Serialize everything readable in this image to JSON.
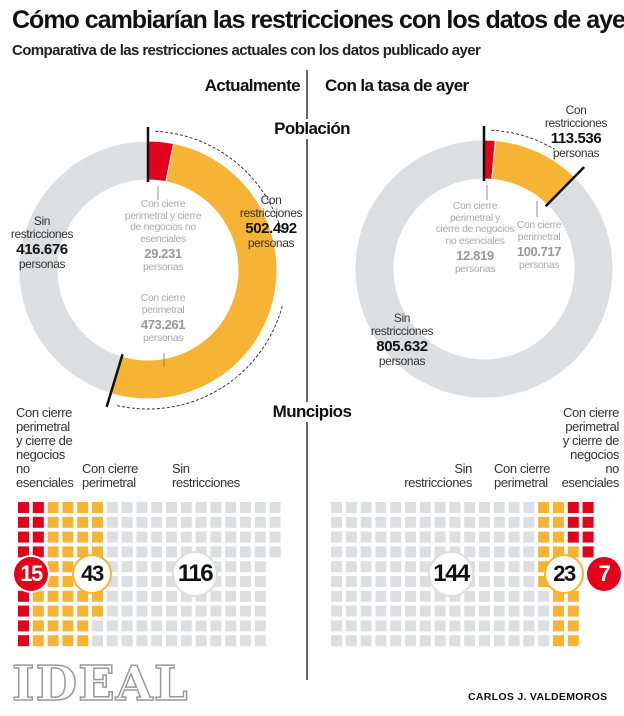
{
  "title": "Cómo cambiarían las restricciones con los datos de ayer",
  "subtitle": "Comparativa de las restricciones actuales con los datos publicado ayer",
  "columns": {
    "left": "Actualmente",
    "right": "Con la tasa de ayer"
  },
  "sections": {
    "population": "Población",
    "municipalities": "Muncipios"
  },
  "colors": {
    "red": "#e2001a",
    "orange": "#f7b334",
    "grey": "#dcdfe2"
  },
  "chart_data": [
    {
      "type": "pie",
      "title": "Población - Actualmente",
      "unit": "personas",
      "slices": [
        {
          "label": "Con cierre perimetral y cierre de negocios no esenciales",
          "value": 29231,
          "display": "29.231",
          "color": "#e2001a"
        },
        {
          "label": "Con cierre perimetral",
          "value": 473261,
          "display": "473.261",
          "color": "#f7b334"
        },
        {
          "label": "Sin restricciones",
          "value": 416676,
          "display": "416.676",
          "color": "#dcdfe2"
        }
      ],
      "group": {
        "label": "Con restricciones",
        "value": 502492,
        "display": "502.492"
      }
    },
    {
      "type": "pie",
      "title": "Población - Con la tasa de ayer",
      "unit": "personas",
      "slices": [
        {
          "label": "Con cierre perimetral y cierre de negocios no esenciales",
          "value": 12819,
          "display": "12.819",
          "color": "#e2001a"
        },
        {
          "label": "Con cierre perimetral",
          "value": 100717,
          "display": "100.717",
          "color": "#f7b334"
        },
        {
          "label": "Sin restricciones",
          "value": 805632,
          "display": "805.632",
          "color": "#dcdfe2"
        }
      ],
      "group": {
        "label": "Con restricciones",
        "value": 113536,
        "display": "113.536"
      }
    },
    {
      "type": "waffle",
      "title": "Municipios - Actualmente",
      "categories": [
        {
          "label": "Con cierre perimetral y cierre de negocios no esenciales",
          "value": 15
        },
        {
          "label": "Con cierre perimetral",
          "value": 43
        },
        {
          "label": "Sin restricciones",
          "value": 116
        }
      ]
    },
    {
      "type": "waffle",
      "title": "Municipios - Con la tasa de ayer",
      "categories": [
        {
          "label": "Sin restricciones",
          "value": 144
        },
        {
          "label": "Con cierre perimetral",
          "value": 23
        },
        {
          "label": "Con cierre perimetral y cierre de negocios no esenciales",
          "value": 7
        }
      ]
    }
  ],
  "labels": {
    "persons": "personas",
    "con": "Con",
    "restricciones": "restricciones",
    "sin": "Sin",
    "both_l1": "Con cierre",
    "both_l2": "perimetral y cierre",
    "both_l3": "de negocios no",
    "both_l4": "esenciales",
    "rboth_l1": "Con cierre",
    "rboth_l2": "perimetral y",
    "rboth_l3": "cierre de negocios",
    "rboth_l4": "no esenciales",
    "perim_l1": "Con cierre",
    "perim_l2": "perimetral",
    "wboth_l1": "Con cierre",
    "wboth_l2": "perimetral",
    "wboth_l3": "y cierre de",
    "wboth_l4": "negocios",
    "wboth_l5": "no",
    "wboth_l6": "esenciales"
  },
  "footer": {
    "logo": "IDEAL",
    "author": "CARLOS J. VALDEMOROS"
  }
}
